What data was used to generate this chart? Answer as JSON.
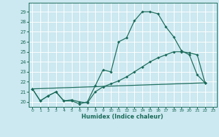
{
  "title": "",
  "xlabel": "Humidex (Indice chaleur)",
  "background_color": "#cce8f0",
  "grid_color": "#ffffff",
  "line_color": "#1a6b5a",
  "xlim": [
    -0.5,
    23.5
  ],
  "ylim": [
    19.5,
    29.9
  ],
  "xticks": [
    0,
    1,
    2,
    3,
    4,
    5,
    6,
    7,
    8,
    9,
    10,
    11,
    12,
    13,
    14,
    15,
    16,
    17,
    18,
    19,
    20,
    21,
    22,
    23
  ],
  "yticks": [
    20,
    21,
    22,
    23,
    24,
    25,
    26,
    27,
    28,
    29
  ],
  "line1_x": [
    0,
    1,
    2,
    3,
    4,
    5,
    6,
    7,
    8,
    9,
    10,
    11,
    12,
    13,
    14,
    15,
    16,
    17,
    18,
    19,
    20,
    21,
    22
  ],
  "line1_y": [
    21.3,
    20.1,
    20.6,
    21.0,
    20.1,
    20.1,
    19.8,
    20.0,
    21.6,
    23.2,
    23.0,
    26.0,
    26.4,
    28.1,
    29.0,
    29.0,
    28.8,
    27.5,
    26.5,
    25.1,
    24.7,
    22.7,
    21.9
  ],
  "line2_x": [
    0,
    1,
    2,
    3,
    4,
    5,
    6,
    7,
    8,
    9,
    10,
    11,
    12,
    13,
    14,
    15,
    16,
    17,
    18,
    19,
    20,
    21,
    22
  ],
  "line2_y": [
    21.3,
    20.1,
    20.6,
    21.0,
    20.1,
    20.2,
    20.0,
    19.9,
    21.0,
    21.5,
    21.8,
    22.1,
    22.5,
    23.0,
    23.5,
    24.0,
    24.4,
    24.7,
    25.0,
    25.0,
    24.9,
    24.7,
    21.9
  ],
  "line3_x": [
    0,
    22
  ],
  "line3_y": [
    21.3,
    21.9
  ]
}
